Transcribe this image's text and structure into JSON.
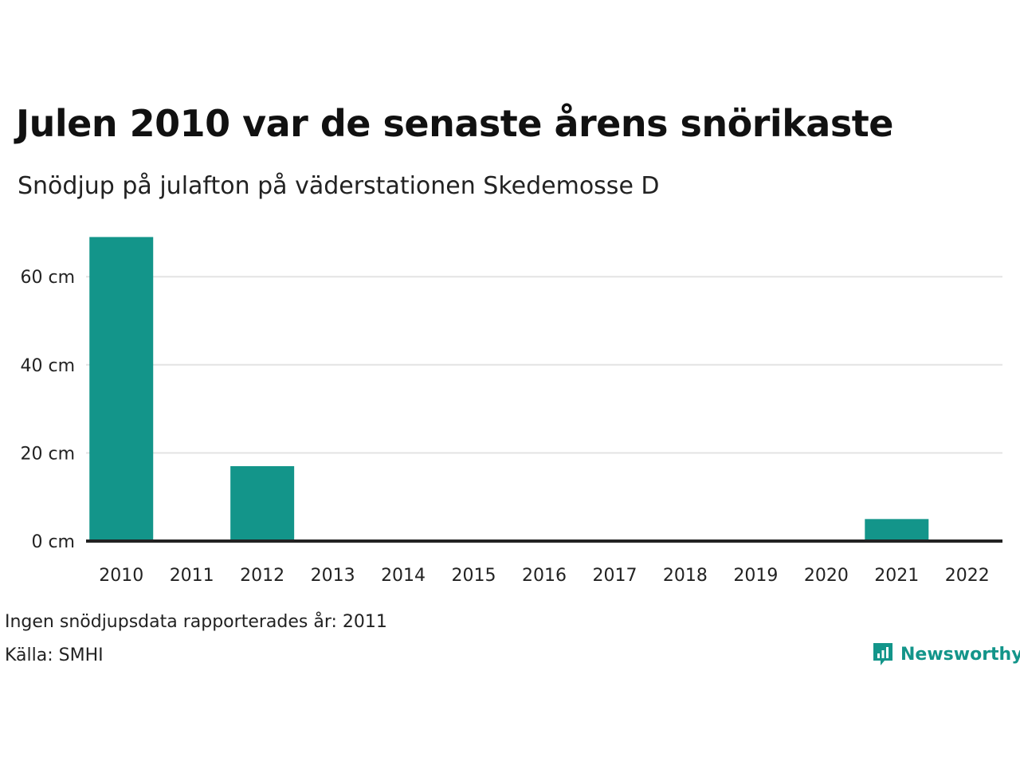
{
  "title": "Julen 2010 var de senaste årens snörikaste",
  "subtitle": "Snödjup på julafton på väderstationen Skedemosse D",
  "note": "Ingen snödjupsdata rapporterades år: 2011",
  "source": "Källa: SMHI",
  "brand": {
    "name": "Newsworthy",
    "icon": "newsworthy-logo-icon",
    "color": "#13958a"
  },
  "colors": {
    "bar": "#13958a",
    "grid": "#e3e3e3",
    "axis": "#222222"
  },
  "chart_data": {
    "type": "bar",
    "title": "Julen 2010 var de senaste årens snörikaste",
    "subtitle": "Snödjup på julafton på väderstationen Skedemosse D",
    "categories": [
      "2010",
      "2011",
      "2012",
      "2013",
      "2014",
      "2015",
      "2016",
      "2017",
      "2018",
      "2019",
      "2020",
      "2021",
      "2022"
    ],
    "values": [
      69,
      null,
      17,
      0,
      0,
      0,
      0,
      0,
      0,
      0,
      0,
      5,
      0
    ],
    "unit": "cm",
    "ylim": [
      0,
      69
    ],
    "yticks": [
      0,
      20,
      40,
      60
    ],
    "ytick_labels": [
      "0 cm",
      "20 cm",
      "40 cm",
      "60 cm"
    ],
    "grid": true,
    "legend": "none"
  }
}
